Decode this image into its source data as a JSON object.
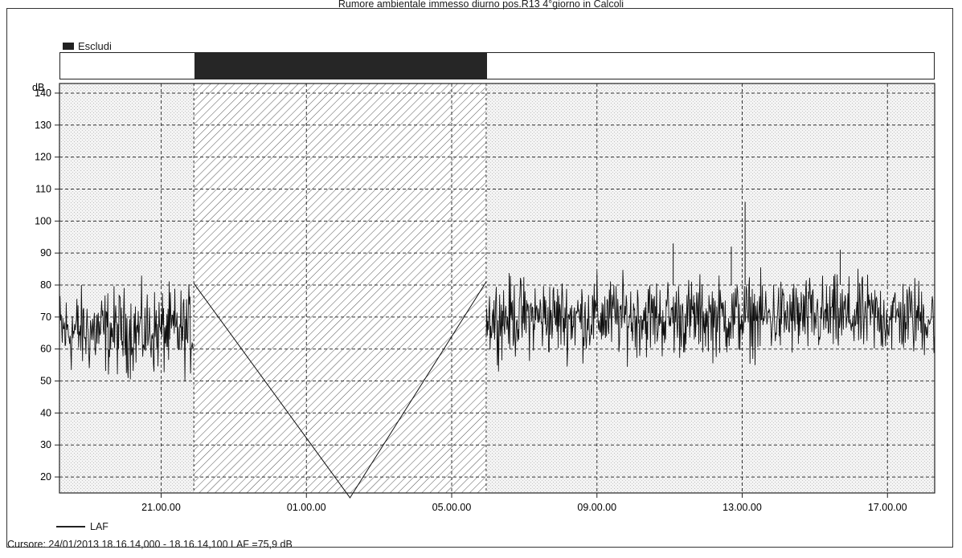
{
  "window": {
    "cursor_readout": "Cursore: 24/01/2013 18.16.14,000 - 18.16.14,100  LAF =75,9 dB"
  },
  "exclude": {
    "label": "Escludi"
  },
  "chart_data": {
    "type": "line",
    "title": "Rumore ambientale immesso diurno pos.R13 4°giorno in Calcoli",
    "ylabel": "dB",
    "xlabel": "",
    "ylim": [
      15,
      143
    ],
    "yticks": [
      20,
      30,
      40,
      50,
      60,
      70,
      80,
      90,
      100,
      110,
      120,
      130,
      140
    ],
    "x_hours_range": [
      18.2,
      42.3
    ],
    "x_ticks": [
      {
        "hour": 21,
        "label": "21.00.00"
      },
      {
        "hour": 25,
        "label": "01.00.00"
      },
      {
        "hour": 29,
        "label": "05.00.00"
      },
      {
        "hour": 33,
        "label": "09.00.00"
      },
      {
        "hour": 37,
        "label": "13.00.00"
      },
      {
        "hour": 41,
        "label": "17.00.00"
      }
    ],
    "grid": true,
    "excluded_interval_hours": [
      21.9,
      29.95
    ],
    "series": [
      {
        "name": "LAF",
        "color": "#111111",
        "segments": [
          {
            "x_start": 18.2,
            "x_end": 21.9,
            "mean": 69,
            "low": 46,
            "high": 85
          },
          {
            "x_start": 29.95,
            "x_end": 42.3,
            "mean": 71,
            "low": 52,
            "high": 88
          }
        ],
        "bridge": [
          [
            21.9,
            80.5
          ],
          [
            26.2,
            13.5
          ],
          [
            29.95,
            81.0
          ]
        ],
        "spikes": [
          [
            37.08,
            106
          ],
          [
            36.7,
            92
          ],
          [
            35.1,
            93
          ],
          [
            39.7,
            91
          ]
        ]
      }
    ]
  }
}
